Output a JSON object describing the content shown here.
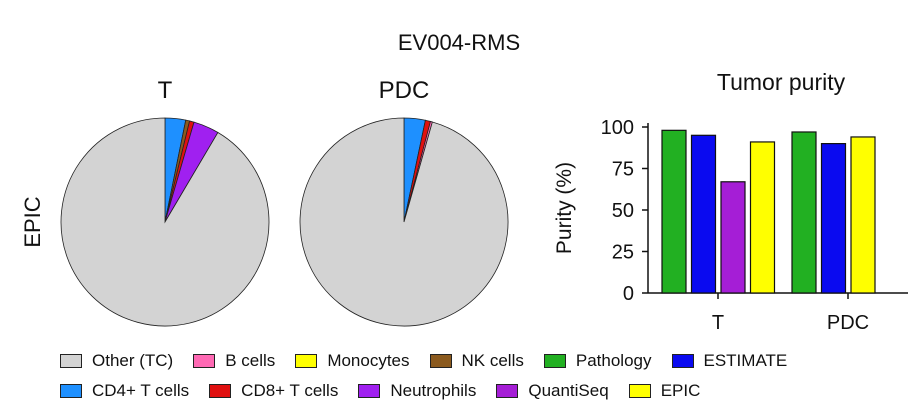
{
  "figure": {
    "title": "EV004-RMS",
    "row_label": "EPIC"
  },
  "chart_data": [
    {
      "type": "pie",
      "title": "T",
      "labels": [
        "Other (TC)",
        "CD4+ T cells",
        "NK cells",
        "CD8+ T cells",
        "Neutrophils"
      ],
      "values": [
        91.5,
        3.2,
        0.6,
        0.7,
        4.0
      ],
      "colors": [
        "#d3d3d3",
        "#1e90ff",
        "#8b5a1e",
        "#e01010",
        "#a020f0"
      ]
    },
    {
      "type": "pie",
      "title": "PDC",
      "labels": [
        "Other (TC)",
        "CD4+ T cells",
        "CD8+ T cells",
        "B cells"
      ],
      "values": [
        95.6,
        3.3,
        0.8,
        0.3
      ],
      "colors": [
        "#d3d3d3",
        "#1e90ff",
        "#e01010",
        "#ff69b4"
      ]
    },
    {
      "type": "bar",
      "title": "Tumor purity",
      "xlabel": "",
      "ylabel": "Purity (%)",
      "ylim": [
        0,
        100
      ],
      "yticks": [
        0,
        25,
        50,
        75,
        100
      ],
      "categories": [
        "T",
        "PDC"
      ],
      "series": [
        {
          "name": "Pathology",
          "color": "#22b022",
          "values": [
            98,
            97
          ]
        },
        {
          "name": "ESTIMATE",
          "color": "#0a0af0",
          "values": [
            95,
            90
          ]
        },
        {
          "name": "QuantiSeq",
          "color": "#a51ed6",
          "values": [
            67,
            null
          ]
        },
        {
          "name": "EPIC",
          "color": "#ffff00",
          "values": [
            91,
            94
          ]
        }
      ]
    }
  ],
  "legend": {
    "rows": [
      [
        {
          "label": "Other (TC)",
          "color": "#d3d3d3"
        },
        {
          "label": "B cells",
          "color": "#ff69b4"
        },
        {
          "label": "Monocytes",
          "color": "#ffff00"
        },
        {
          "label": "NK cells",
          "color": "#8b5a1e"
        },
        {
          "label": "Pathology",
          "color": "#22b022"
        },
        {
          "label": "ESTIMATE",
          "color": "#0a0af0"
        }
      ],
      [
        {
          "label": "CD4+ T cells",
          "color": "#1e90ff"
        },
        {
          "label": "CD8+ T cells",
          "color": "#e01010"
        },
        {
          "label": "Neutrophils",
          "color": "#a020f0"
        },
        {
          "label": "QuantiSeq",
          "color": "#a51ed6"
        },
        {
          "label": "EPIC",
          "color": "#ffff00"
        }
      ]
    ]
  }
}
